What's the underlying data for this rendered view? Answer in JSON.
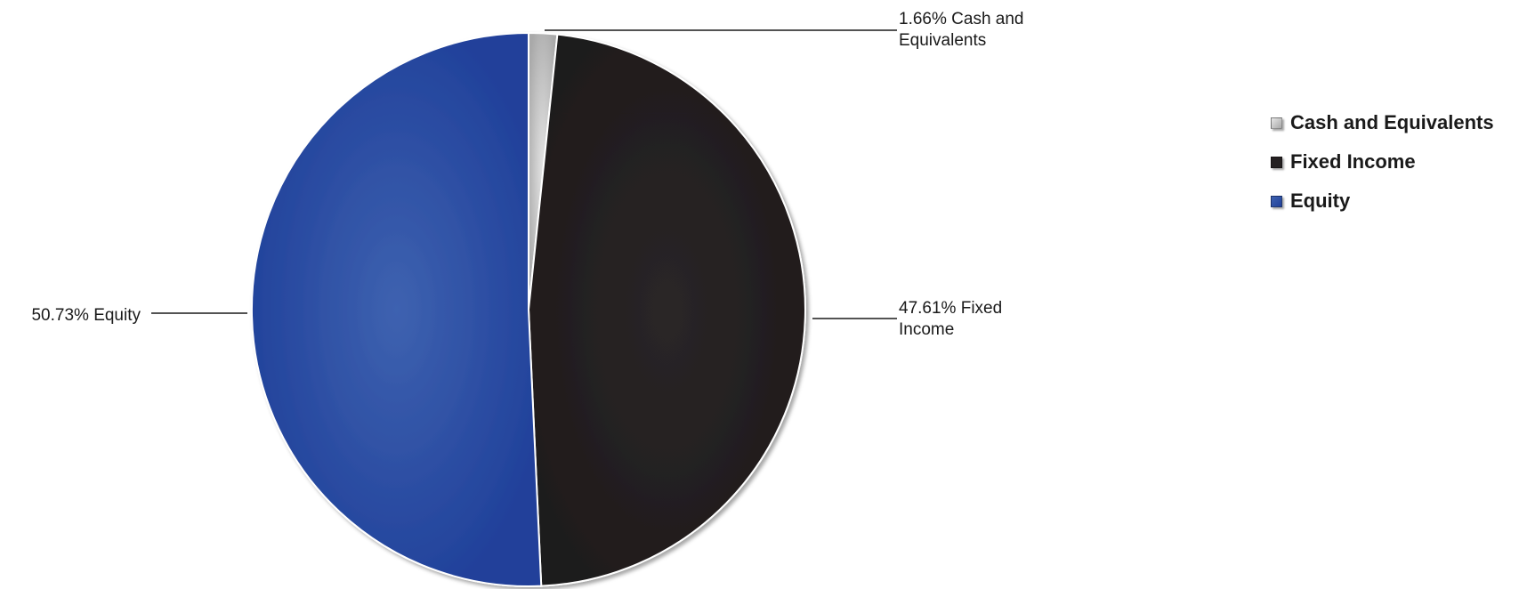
{
  "chart_data": {
    "type": "pie",
    "slices": [
      {
        "name": "Cash and Equivalents",
        "value": 1.66,
        "label_lines": [
          "1.66% Cash and",
          "Equivalents"
        ],
        "color": "#c8c8c8"
      },
      {
        "name": "Fixed Income",
        "value": 47.61,
        "label_lines": [
          "47.61% Fixed",
          "Income"
        ],
        "color": "#252122"
      },
      {
        "name": "Equity",
        "value": 50.73,
        "label_lines": [
          "50.73% Equity"
        ],
        "color": "#2b4ea3"
      }
    ],
    "legend": {
      "position": "right",
      "items": [
        "Cash and Equivalents",
        "Fixed Income",
        "Equity"
      ]
    }
  }
}
